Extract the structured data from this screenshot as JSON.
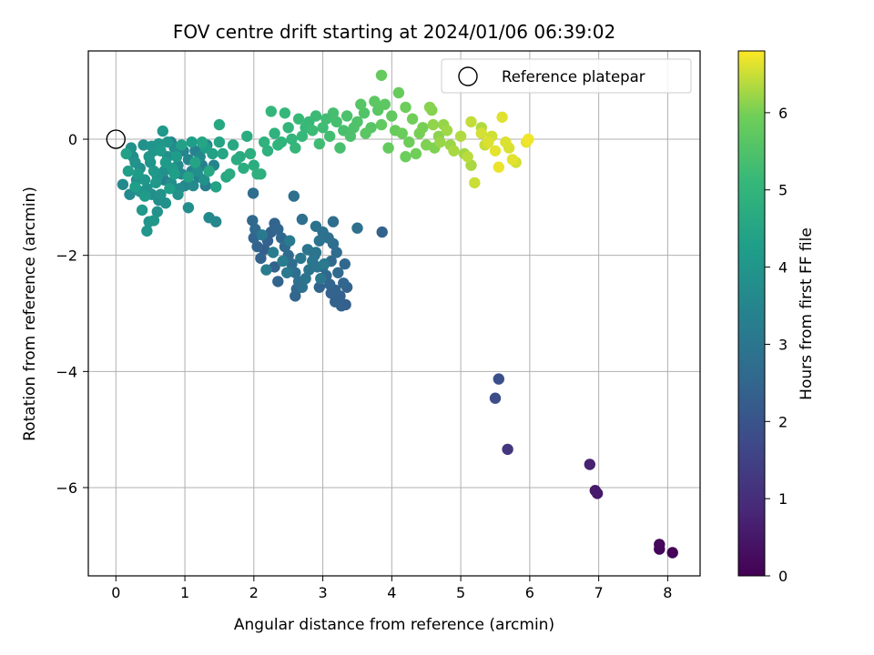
{
  "chart_data": {
    "type": "scatter",
    "title": "FOV centre drift starting at 2024/01/06 06:39:02",
    "xlabel": "Angular distance from reference (arcmin)",
    "ylabel": "Rotation from reference (arcmin)",
    "xlim": [
      -0.4,
      8.47
    ],
    "ylim": [
      -7.52,
      1.52
    ],
    "xticks": [
      0,
      1,
      2,
      3,
      4,
      5,
      6,
      7,
      8
    ],
    "yticks": [
      0,
      -2,
      -4,
      -6
    ],
    "grid": true,
    "legend": {
      "placement": "top-right",
      "entries": [
        "Reference platepar"
      ]
    },
    "reference_point": {
      "x": 0,
      "y": 0
    },
    "colorbar": {
      "label": "Hours from first FF file",
      "range": [
        0,
        6.8
      ],
      "ticks": [
        0,
        1,
        2,
        3,
        4,
        5,
        6
      ],
      "colormap": "viridis"
    },
    "series": [
      {
        "points": [
          [
            8.07,
            -7.12,
            0.05
          ],
          [
            7.88,
            -7.06,
            0.1
          ],
          [
            7.88,
            -6.98,
            0.15
          ],
          [
            6.98,
            -6.1,
            0.5
          ],
          [
            6.95,
            -6.05,
            0.55
          ],
          [
            6.87,
            -5.6,
            0.7
          ],
          [
            5.68,
            -5.34,
            1.2
          ],
          [
            5.5,
            -4.46,
            1.8
          ],
          [
            5.55,
            -4.13,
            1.9
          ],
          [
            3.86,
            -1.6,
            2.4
          ],
          [
            3.33,
            -2.85,
            2.3
          ],
          [
            3.27,
            -2.87,
            2.35
          ],
          [
            3.18,
            -2.8,
            2.4
          ],
          [
            3.35,
            -2.55,
            2.45
          ],
          [
            3.3,
            -2.48,
            2.5
          ],
          [
            3.32,
            -2.15,
            2.55
          ],
          [
            3.18,
            -2.6,
            2.45
          ],
          [
            3.1,
            -2.5,
            2.5
          ],
          [
            3.05,
            -2.35,
            2.55
          ],
          [
            3.0,
            -2.2,
            2.6
          ],
          [
            3.12,
            -2.1,
            2.65
          ],
          [
            3.2,
            -1.95,
            2.7
          ],
          [
            3.15,
            -1.8,
            2.75
          ],
          [
            3.08,
            -1.7,
            2.8
          ],
          [
            3.0,
            -1.6,
            2.85
          ],
          [
            2.95,
            -1.75,
            2.9
          ],
          [
            2.9,
            -1.95,
            2.95
          ],
          [
            2.85,
            -2.1,
            3.0
          ],
          [
            2.8,
            -2.25,
            2.95
          ],
          [
            2.75,
            -2.4,
            2.9
          ],
          [
            2.7,
            -2.55,
            2.85
          ],
          [
            2.65,
            -2.45,
            2.8
          ],
          [
            2.6,
            -2.3,
            2.75
          ],
          [
            2.55,
            -2.15,
            2.7
          ],
          [
            2.5,
            -2.0,
            2.65
          ],
          [
            2.45,
            -1.85,
            2.6
          ],
          [
            2.4,
            -1.7,
            2.55
          ],
          [
            2.35,
            -1.55,
            2.5
          ],
          [
            2.3,
            -1.45,
            2.45
          ],
          [
            2.25,
            -1.6,
            2.4
          ],
          [
            2.2,
            -1.75,
            2.35
          ],
          [
            2.15,
            -1.9,
            2.3
          ],
          [
            2.1,
            -2.05,
            2.4
          ],
          [
            2.05,
            -1.85,
            2.45
          ],
          [
            2.0,
            -1.7,
            2.5
          ],
          [
            1.98,
            -1.4,
            2.55
          ],
          [
            2.02,
            -1.55,
            2.6
          ],
          [
            2.3,
            -2.2,
            2.4
          ],
          [
            2.35,
            -2.45,
            2.45
          ],
          [
            2.6,
            -2.7,
            2.5
          ],
          [
            2.62,
            -2.58,
            2.55
          ],
          [
            2.58,
            -0.98,
            2.8
          ],
          [
            1.99,
            -0.93,
            2.7
          ],
          [
            3.15,
            -1.42,
            2.75
          ],
          [
            3.5,
            -1.53,
            2.8
          ],
          [
            2.7,
            -1.38,
            2.85
          ],
          [
            2.9,
            -1.5,
            2.9
          ],
          [
            2.88,
            -2.0,
            2.95
          ],
          [
            2.92,
            -2.2,
            3.0
          ],
          [
            2.97,
            -2.4,
            3.05
          ],
          [
            3.02,
            -2.15,
            3.1
          ],
          [
            2.78,
            -1.9,
            3.0
          ],
          [
            2.68,
            -2.05,
            3.05
          ],
          [
            2.48,
            -2.3,
            3.1
          ],
          [
            2.52,
            -1.75,
            3.15
          ],
          [
            2.42,
            -2.1,
            3.2
          ],
          [
            2.28,
            -1.95,
            3.25
          ],
          [
            2.18,
            -2.25,
            3.2
          ],
          [
            2.12,
            -1.65,
            3.15
          ],
          [
            3.22,
            -2.3,
            2.6
          ],
          [
            3.25,
            -2.7,
            2.35
          ],
          [
            3.12,
            -2.65,
            2.4
          ],
          [
            2.95,
            -2.55,
            2.45
          ],
          [
            0.1,
            -0.78,
            3.6
          ],
          [
            0.2,
            -0.95,
            3.65
          ],
          [
            0.25,
            -0.3,
            3.7
          ],
          [
            0.3,
            -0.7,
            3.75
          ],
          [
            0.35,
            -0.5,
            3.8
          ],
          [
            0.4,
            -0.1,
            3.85
          ],
          [
            0.45,
            -0.85,
            3.9
          ],
          [
            0.5,
            -0.4,
            3.95
          ],
          [
            0.55,
            -0.2,
            4.0
          ],
          [
            0.6,
            -0.65,
            3.95
          ],
          [
            0.65,
            -0.95,
            3.9
          ],
          [
            0.7,
            -0.55,
            3.85
          ],
          [
            0.75,
            -0.3,
            3.8
          ],
          [
            0.8,
            -0.75,
            3.75
          ],
          [
            0.85,
            -0.15,
            3.7
          ],
          [
            0.9,
            -0.45,
            3.65
          ],
          [
            0.95,
            -0.6,
            3.6
          ],
          [
            1.0,
            -0.8,
            3.55
          ],
          [
            1.05,
            -0.35,
            3.5
          ],
          [
            1.1,
            -0.55,
            3.45
          ],
          [
            1.15,
            -0.2,
            3.4
          ],
          [
            1.2,
            -0.65,
            3.35
          ],
          [
            1.25,
            -0.45,
            3.3
          ],
          [
            1.3,
            -0.8,
            3.25
          ],
          [
            1.35,
            -1.35,
            3.6
          ],
          [
            1.45,
            -1.42,
            3.55
          ],
          [
            1.05,
            -1.18,
            3.8
          ],
          [
            0.72,
            -1.1,
            3.85
          ],
          [
            0.6,
            -1.25,
            3.9
          ],
          [
            0.48,
            -1.42,
            3.95
          ],
          [
            0.45,
            -1.58,
            4.0
          ],
          [
            0.55,
            -1.4,
            4.05
          ],
          [
            0.38,
            -1.22,
            4.1
          ],
          [
            0.42,
            -0.98,
            4.15
          ],
          [
            0.68,
            0.14,
            4.1
          ],
          [
            0.75,
            -0.05,
            4.05
          ],
          [
            0.62,
            -0.08,
            4.0
          ],
          [
            0.52,
            -0.12,
            3.95
          ],
          [
            0.32,
            -0.6,
            4.2
          ],
          [
            0.28,
            -0.82,
            4.25
          ],
          [
            0.18,
            -0.55,
            4.3
          ],
          [
            0.15,
            -0.25,
            4.35
          ],
          [
            0.58,
            -0.75,
            4.1
          ],
          [
            0.82,
            -0.5,
            4.15
          ],
          [
            0.88,
            -0.3,
            4.2
          ],
          [
            1.1,
            -0.05,
            4.25
          ],
          [
            1.3,
            -0.15,
            4.3
          ],
          [
            1.4,
            -0.25,
            4.35
          ],
          [
            1.45,
            -0.82,
            4.4
          ],
          [
            1.5,
            -0.05,
            4.45
          ],
          [
            1.55,
            -0.25,
            4.5
          ],
          [
            1.6,
            -0.65,
            4.55
          ],
          [
            1.7,
            -0.1,
            4.6
          ],
          [
            1.8,
            -0.3,
            4.65
          ],
          [
            1.9,
            0.05,
            4.7
          ],
          [
            2.0,
            -0.45,
            4.75
          ],
          [
            2.1,
            -0.6,
            4.8
          ],
          [
            2.2,
            -0.2,
            4.85
          ],
          [
            2.3,
            0.1,
            4.9
          ],
          [
            2.4,
            -0.05,
            4.95
          ],
          [
            2.5,
            0.2,
            5.0
          ],
          [
            2.6,
            -0.15,
            5.05
          ],
          [
            2.7,
            0.05,
            5.1
          ],
          [
            2.8,
            0.3,
            5.15
          ],
          [
            2.9,
            0.4,
            5.2
          ],
          [
            3.0,
            0.2,
            5.25
          ],
          [
            3.1,
            0.05,
            5.3
          ],
          [
            3.2,
            0.3,
            5.35
          ],
          [
            3.3,
            0.15,
            5.4
          ],
          [
            3.4,
            0.05,
            5.45
          ],
          [
            3.5,
            0.3,
            5.5
          ],
          [
            3.6,
            0.45,
            5.55
          ],
          [
            3.7,
            0.2,
            5.6
          ],
          [
            3.8,
            0.5,
            5.65
          ],
          [
            3.9,
            0.6,
            5.7
          ],
          [
            4.0,
            0.4,
            5.75
          ],
          [
            3.85,
            1.1,
            5.8
          ],
          [
            4.1,
            0.8,
            5.85
          ],
          [
            4.2,
            0.55,
            5.9
          ],
          [
            4.3,
            0.35,
            5.95
          ],
          [
            4.4,
            0.1,
            6.0
          ],
          [
            4.5,
            -0.1,
            6.05
          ],
          [
            4.55,
            0.55,
            6.1
          ],
          [
            4.6,
            0.25,
            6.15
          ],
          [
            4.7,
            -0.05,
            6.2
          ],
          [
            4.8,
            0.15,
            6.25
          ],
          [
            4.9,
            -0.2,
            6.3
          ],
          [
            5.0,
            0.05,
            6.35
          ],
          [
            5.1,
            -0.3,
            6.4
          ],
          [
            5.15,
            0.3,
            6.45
          ],
          [
            5.2,
            -0.75,
            6.5
          ],
          [
            5.3,
            0.1,
            6.55
          ],
          [
            5.4,
            -0.05,
            6.6
          ],
          [
            5.5,
            -0.2,
            6.65
          ],
          [
            5.55,
            -0.48,
            6.7
          ],
          [
            5.6,
            0.38,
            6.62
          ],
          [
            5.7,
            -0.15,
            6.58
          ],
          [
            5.8,
            -0.4,
            6.55
          ],
          [
            5.95,
            -0.05,
            6.68
          ],
          [
            5.98,
            0.0,
            6.72
          ],
          [
            5.15,
            -0.45,
            6.3
          ],
          [
            5.3,
            0.2,
            6.35
          ],
          [
            5.05,
            -0.25,
            6.25
          ],
          [
            4.62,
            -0.15,
            6.05
          ],
          [
            4.45,
            0.2,
            6.0
          ],
          [
            4.35,
            -0.25,
            5.95
          ],
          [
            4.2,
            -0.3,
            5.9
          ],
          [
            4.05,
            0.15,
            5.85
          ],
          [
            3.95,
            -0.15,
            5.8
          ],
          [
            3.85,
            0.25,
            5.75
          ],
          [
            3.75,
            0.65,
            5.7
          ],
          [
            3.62,
            0.1,
            5.65
          ],
          [
            3.55,
            0.6,
            5.6
          ],
          [
            3.35,
            0.4,
            5.45
          ],
          [
            3.15,
            0.45,
            5.35
          ],
          [
            2.95,
            -0.08,
            5.25
          ],
          [
            2.85,
            0.15,
            5.2
          ],
          [
            2.65,
            0.35,
            5.15
          ],
          [
            2.45,
            0.45,
            5.1
          ],
          [
            2.25,
            0.48,
            5.05
          ],
          [
            2.35,
            -0.1,
            4.95
          ],
          [
            2.15,
            -0.05,
            4.9
          ],
          [
            2.05,
            -0.6,
            4.85
          ],
          [
            1.95,
            -0.25,
            4.8
          ],
          [
            1.85,
            -0.5,
            4.75
          ],
          [
            1.75,
            -0.35,
            4.7
          ],
          [
            1.65,
            -0.6,
            4.65
          ],
          [
            1.5,
            0.25,
            4.6
          ],
          [
            1.35,
            -0.55,
            4.55
          ],
          [
            1.25,
            -0.05,
            4.5
          ],
          [
            1.15,
            -0.4,
            4.45
          ],
          [
            1.05,
            -0.65,
            4.4
          ],
          [
            0.95,
            -0.1,
            4.35
          ],
          [
            0.85,
            -0.6,
            4.3
          ],
          [
            0.78,
            -0.85,
            4.25
          ],
          [
            0.72,
            -0.4,
            4.2
          ],
          [
            0.65,
            -0.2,
            4.15
          ],
          [
            0.55,
            -0.55,
            4.1
          ],
          [
            0.48,
            -0.3,
            4.05
          ],
          [
            0.42,
            -0.7,
            4.0
          ],
          [
            0.35,
            -0.9,
            3.95
          ],
          [
            0.28,
            -0.4,
            3.9
          ],
          [
            0.22,
            -0.15,
            3.85
          ],
          [
            0.52,
            -0.95,
            3.8
          ],
          [
            0.62,
            -1.05,
            3.75
          ],
          [
            0.92,
            -0.85,
            3.7
          ],
          [
            1.12,
            -0.8,
            3.65
          ],
          [
            1.22,
            -0.3,
            3.6
          ],
          [
            1.32,
            -0.1,
            3.55
          ],
          [
            1.42,
            -0.45,
            3.5
          ],
          [
            0.98,
            -0.2,
            3.45
          ],
          [
            0.8,
            -0.05,
            3.4
          ],
          [
            1.18,
            -0.55,
            3.8
          ],
          [
            1.28,
            -0.7,
            3.85
          ],
          [
            0.9,
            -0.95,
            3.9
          ],
          [
            0.7,
            -0.7,
            3.35
          ],
          [
            4.15,
            0.1,
            5.88
          ],
          [
            4.25,
            -0.05,
            5.92
          ],
          [
            4.75,
            0.25,
            6.18
          ],
          [
            4.85,
            -0.1,
            6.22
          ],
          [
            5.35,
            -0.1,
            6.48
          ],
          [
            5.45,
            0.05,
            6.52
          ],
          [
            5.65,
            -0.05,
            6.6
          ],
          [
            5.75,
            -0.35,
            6.64
          ],
          [
            3.45,
            0.2,
            5.48
          ],
          [
            3.25,
            -0.15,
            5.38
          ],
          [
            3.05,
            0.35,
            5.28
          ],
          [
            2.75,
            0.2,
            5.12
          ],
          [
            2.55,
            0.0,
            5.02
          ],
          [
            4.58,
            0.5,
            6.08
          ],
          [
            4.68,
            0.05,
            6.12
          ]
        ]
      }
    ]
  }
}
